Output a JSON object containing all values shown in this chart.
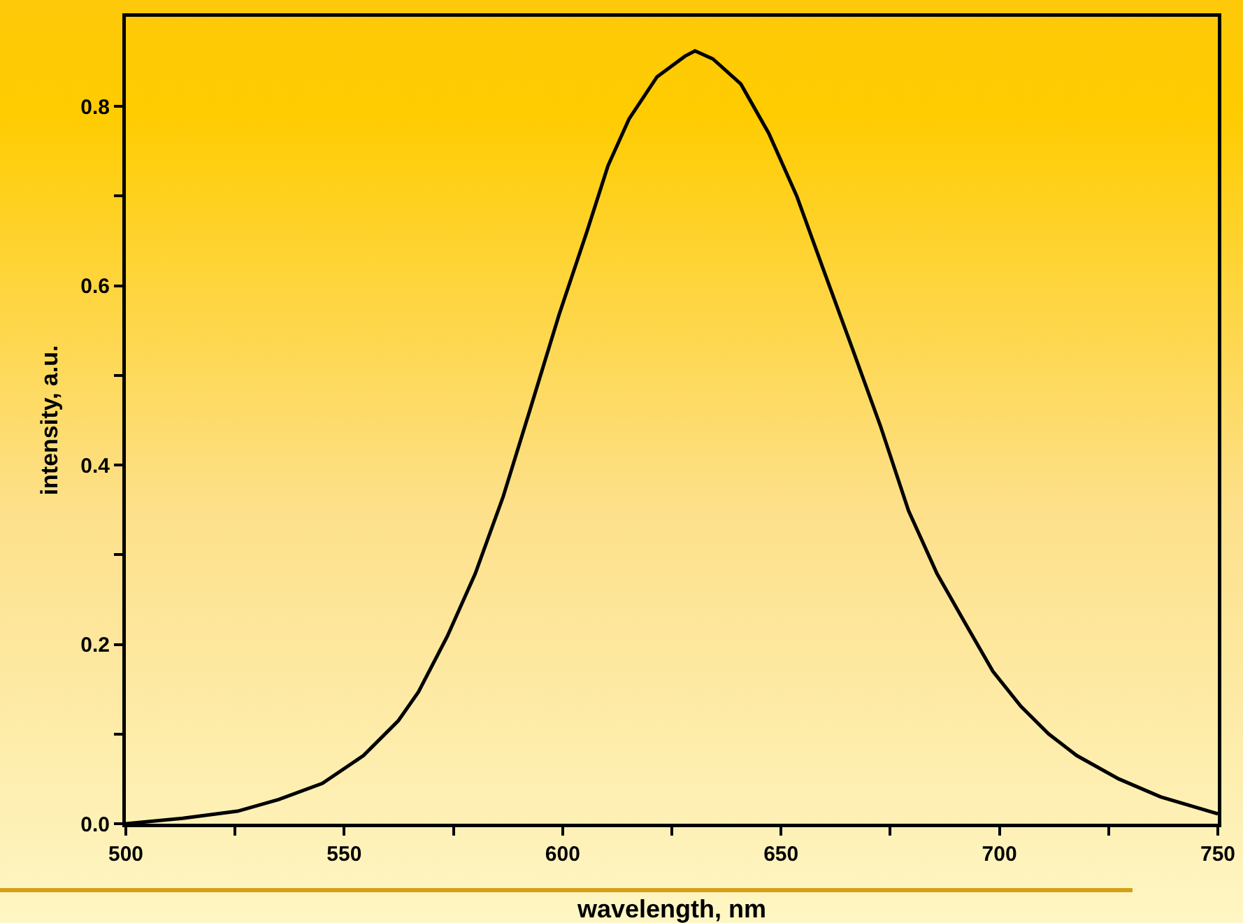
{
  "chart_data": {
    "type": "line",
    "xlabel": "wavelength, nm",
    "ylabel": "intensity, a.u.",
    "xlim": [
      500,
      750
    ],
    "ylim": [
      0,
      0.9
    ],
    "xticks": [
      500,
      {
        "value": 525,
        "label": null
      },
      550,
      {
        "value": 575,
        "label": null
      },
      600,
      {
        "value": 625,
        "label": null
      },
      650,
      {
        "value": 675,
        "label": null
      },
      700,
      {
        "value": 725,
        "label": null
      },
      750
    ],
    "yticks": [
      {
        "value": 0,
        "label": "0.0"
      },
      {
        "value": 0.1,
        "label": null
      },
      0.2,
      {
        "value": 0.3,
        "label": null
      },
      0.4,
      {
        "value": 0.5,
        "label": null
      },
      0.6,
      {
        "value": 0.7,
        "label": null
      },
      0.8
    ],
    "grid": false,
    "marker": "none",
    "line_style": "solid",
    "series": [
      {
        "color": "#000000",
        "x": [
          500,
          513,
          525.6,
          535,
          545,
          554.4,
          562.4,
          567,
          573.6,
          580,
          586.4,
          592.8,
          599.2,
          605.6,
          610.4,
          615.2,
          621.6,
          628,
          630.3,
          634.4,
          640.8,
          647.2,
          653.6,
          660,
          666.4,
          672.8,
          679.2,
          685.7,
          692,
          698.5,
          704.9,
          711.3,
          717.7,
          727.3,
          736.9,
          750
        ],
        "values": [
          0,
          0.006,
          0.014,
          0.027,
          0.045,
          0.076,
          0.115,
          0.147,
          0.209,
          0.279,
          0.365,
          0.466,
          0.568,
          0.661,
          0.734,
          0.786,
          0.833,
          0.856,
          0.862,
          0.853,
          0.825,
          0.77,
          0.7,
          0.614,
          0.529,
          0.443,
          0.349,
          0.279,
          0.225,
          0.17,
          0.131,
          0.1,
          0.076,
          0.05,
          0.03,
          0.011
        ]
      }
    ]
  }
}
